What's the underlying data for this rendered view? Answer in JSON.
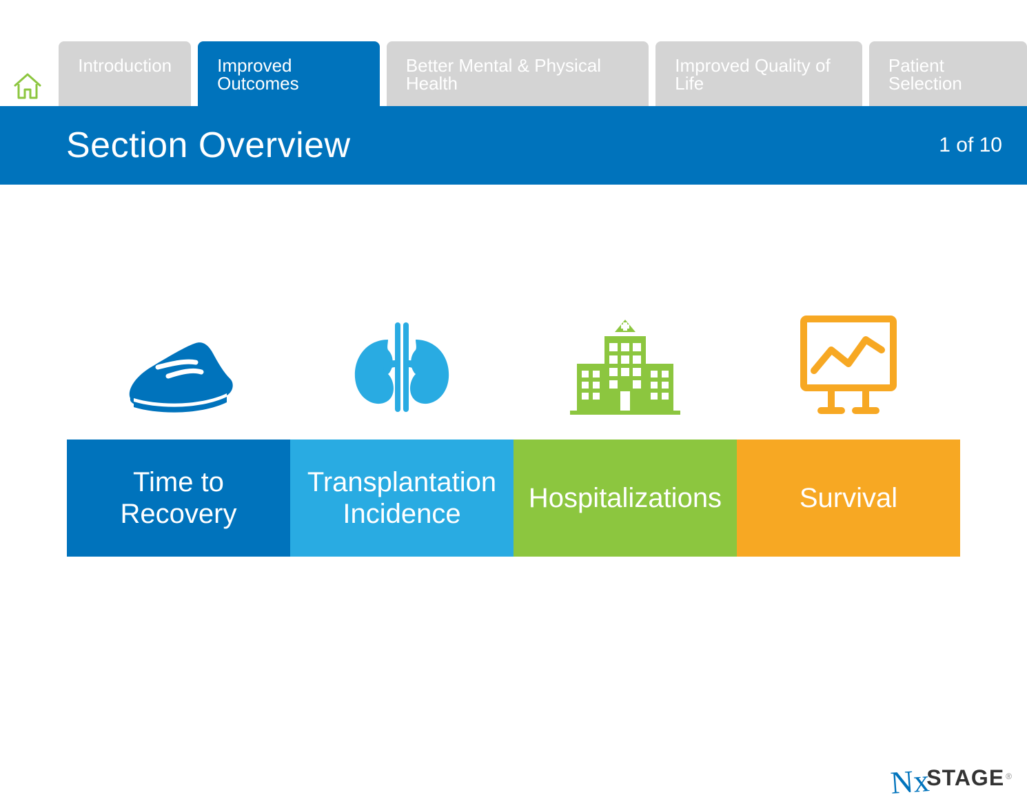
{
  "colors": {
    "brand_blue": "#0073bc",
    "light_blue": "#29abe2",
    "green": "#8cc63f",
    "orange": "#f7a823",
    "tab_grey": "#d4d4d4",
    "white": "#ffffff",
    "home_icon_stroke": "#8cc63f",
    "logo_blue": "#0073bc",
    "logo_dark": "#333333"
  },
  "nav": {
    "home_icon": "home-icon",
    "tabs": [
      {
        "label": "Introduction",
        "active": false
      },
      {
        "label": "Improved Outcomes",
        "active": true
      },
      {
        "label": "Better Mental & Physical Health",
        "active": false
      },
      {
        "label": "Improved Quality of Life",
        "active": false
      },
      {
        "label": "Patient Selection",
        "active": false
      }
    ]
  },
  "section": {
    "title": "Section Overview",
    "page_counter": "1 of 10"
  },
  "cards": [
    {
      "icon": "shoe-icon",
      "icon_color": "#0073bc",
      "label": "Time to\nRecovery",
      "bg": "#0073bc"
    },
    {
      "icon": "kidneys-icon",
      "icon_color": "#29abe2",
      "label": "Transplantation\nIncidence",
      "bg": "#29abe2"
    },
    {
      "icon": "hospital-icon",
      "icon_color": "#8cc63f",
      "label": "Hospitalizations",
      "bg": "#8cc63f"
    },
    {
      "icon": "chart-icon",
      "icon_color": "#f7a823",
      "label": "Survival",
      "bg": "#f7a823"
    }
  ],
  "footer": {
    "logo_script": "Nx",
    "logo_bold": "STAGE",
    "logo_mark": "®"
  }
}
